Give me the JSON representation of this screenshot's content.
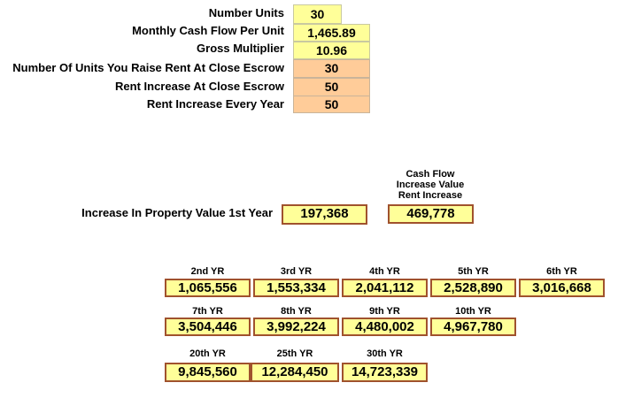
{
  "inputs": [
    {
      "label": "Number Units",
      "value": "30"
    },
    {
      "label": "Monthly Cash Flow Per Unit",
      "value": "1,465.89"
    },
    {
      "label": "Gross Multiplier",
      "value": "10.96"
    },
    {
      "label": "Number Of Units You Raise Rent At Close Escrow",
      "value": "30"
    },
    {
      "label": "Rent Increase At Close Escrow",
      "value": "50"
    },
    {
      "label": "Rent Increase Every Year",
      "value": "50"
    }
  ],
  "first_year": {
    "label": "Increase In Property Value 1st Year",
    "value": "197,368",
    "cash_flow_header": [
      "Cash Flow",
      "Increase Value",
      "Rent Increase"
    ],
    "cash_flow_value": "469,778"
  },
  "years": [
    {
      "label": "2nd YR",
      "value": "1,065,556"
    },
    {
      "label": "3rd YR",
      "value": "1,553,334"
    },
    {
      "label": "4th YR",
      "value": "2,041,112"
    },
    {
      "label": "5th YR",
      "value": "2,528,890"
    },
    {
      "label": "6th YR",
      "value": "3,016,668"
    },
    {
      "label": "7th YR",
      "value": "3,504,446"
    },
    {
      "label": "8th YR",
      "value": "3,992,224"
    },
    {
      "label": "9th YR",
      "value": "4,480,002"
    },
    {
      "label": "10th YR",
      "value": "4,967,780"
    },
    {
      "label": "20th YR",
      "value": "9,845,560"
    },
    {
      "label": "25th YR",
      "value": "12,284,450"
    },
    {
      "label": "30th YR",
      "value": "14,723,339"
    }
  ],
  "colors": {
    "input_yellow": "#ffff99",
    "input_orange": "#ffcc99",
    "output_border": "#a0522d"
  }
}
